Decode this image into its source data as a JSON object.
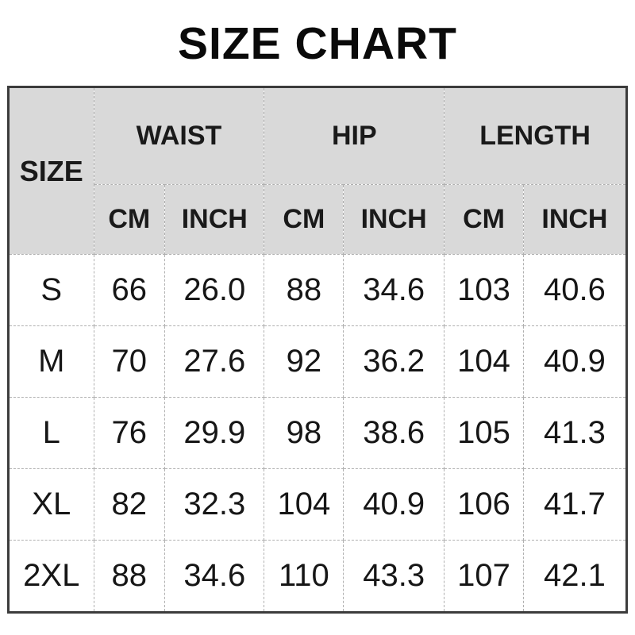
{
  "title": "SIZE CHART",
  "table": {
    "corner_label": "SIZE",
    "groups": [
      {
        "label": "WAIST",
        "sub": [
          "CM",
          "INCH"
        ]
      },
      {
        "label": "HIP",
        "sub": [
          "CM",
          "INCH"
        ]
      },
      {
        "label": "LENGTH",
        "sub": [
          "CM",
          "INCH"
        ]
      }
    ]
  },
  "chart_data": {
    "type": "table",
    "title": "SIZE CHART",
    "columns": [
      "SIZE",
      "WAIST CM",
      "WAIST INCH",
      "HIP CM",
      "HIP INCH",
      "LENGTH CM",
      "LENGTH INCH"
    ],
    "rows": [
      [
        "S",
        "66",
        "26.0",
        "88",
        "34.6",
        "103",
        "40.6"
      ],
      [
        "M",
        "70",
        "27.6",
        "92",
        "36.2",
        "104",
        "40.9"
      ],
      [
        "L",
        "76",
        "29.9",
        "98",
        "38.6",
        "105",
        "41.3"
      ],
      [
        "XL",
        "82",
        "32.3",
        "104",
        "40.9",
        "106",
        "41.7"
      ],
      [
        "2XL",
        "88",
        "34.6",
        "110",
        "43.3",
        "107",
        "42.1"
      ]
    ]
  },
  "colors": {
    "header_bg": "#d9d9d9",
    "outer_border": "#3c3c3c",
    "grid_line": "#b0b0b0",
    "text": "#111111"
  }
}
